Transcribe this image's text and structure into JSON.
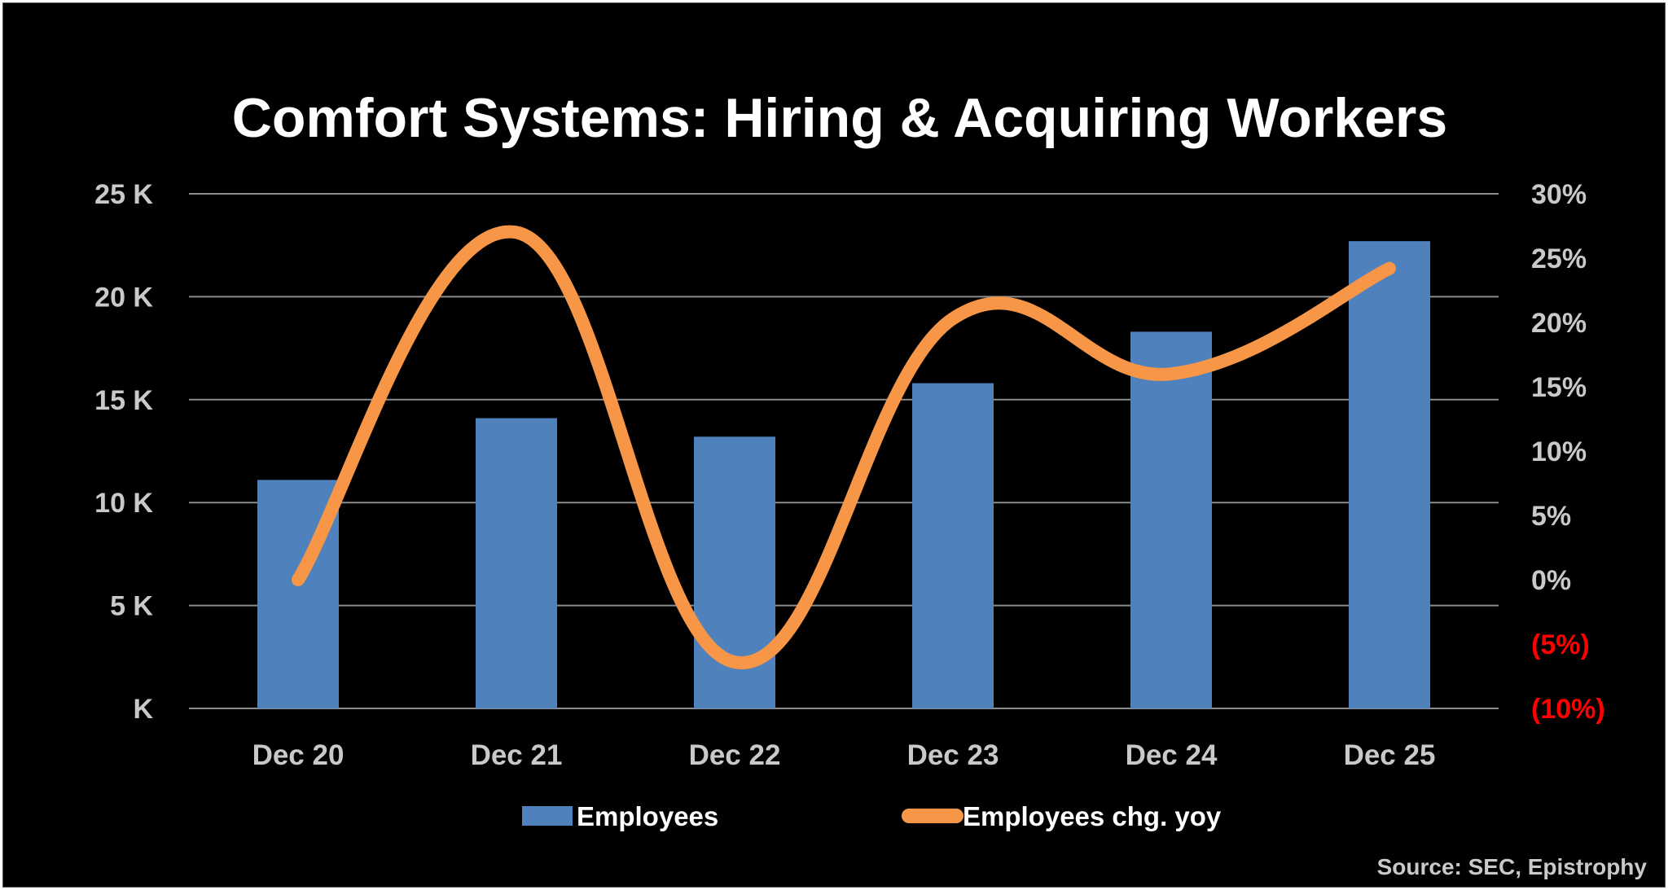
{
  "chart_data": {
    "type": "bar",
    "title": "Comfort Systems: Hiring & Acquiring Workers",
    "categories": [
      "Dec 20",
      "Dec 21",
      "Dec 22",
      "Dec 23",
      "Dec 24",
      "Dec 25"
    ],
    "series": [
      {
        "name": "Employees",
        "type": "bar",
        "axis": "left",
        "color": "#4f81bd",
        "values": [
          11100,
          14100,
          13200,
          15800,
          18300,
          22700
        ]
      },
      {
        "name": "Employees chg. yoy",
        "type": "line",
        "axis": "right",
        "color": "#f79646",
        "smooth": true,
        "values": [
          0.0,
          27.0,
          -6.4,
          20.3,
          16.0,
          24.2
        ]
      }
    ],
    "y_left": {
      "min": 0,
      "max": 25000,
      "ticks": [
        0,
        5000,
        10000,
        15000,
        20000,
        25000
      ],
      "tick_labels": [
        "K",
        "5 K",
        "10 K",
        "15 K",
        "20 K",
        "25 K"
      ]
    },
    "y_right": {
      "min": -10,
      "max": 30,
      "ticks": [
        -10,
        -5,
        0,
        5,
        10,
        15,
        20,
        25,
        30
      ],
      "tick_labels": [
        "(10%)",
        "(5%)",
        "0%",
        "5%",
        "10%",
        "15%",
        "20%",
        "25%",
        "30%"
      ],
      "negative_color": "#ff0000"
    },
    "grid": true,
    "legend_position": "bottom",
    "background": "#000000",
    "source": "Source: SEC, Epistrophy"
  }
}
